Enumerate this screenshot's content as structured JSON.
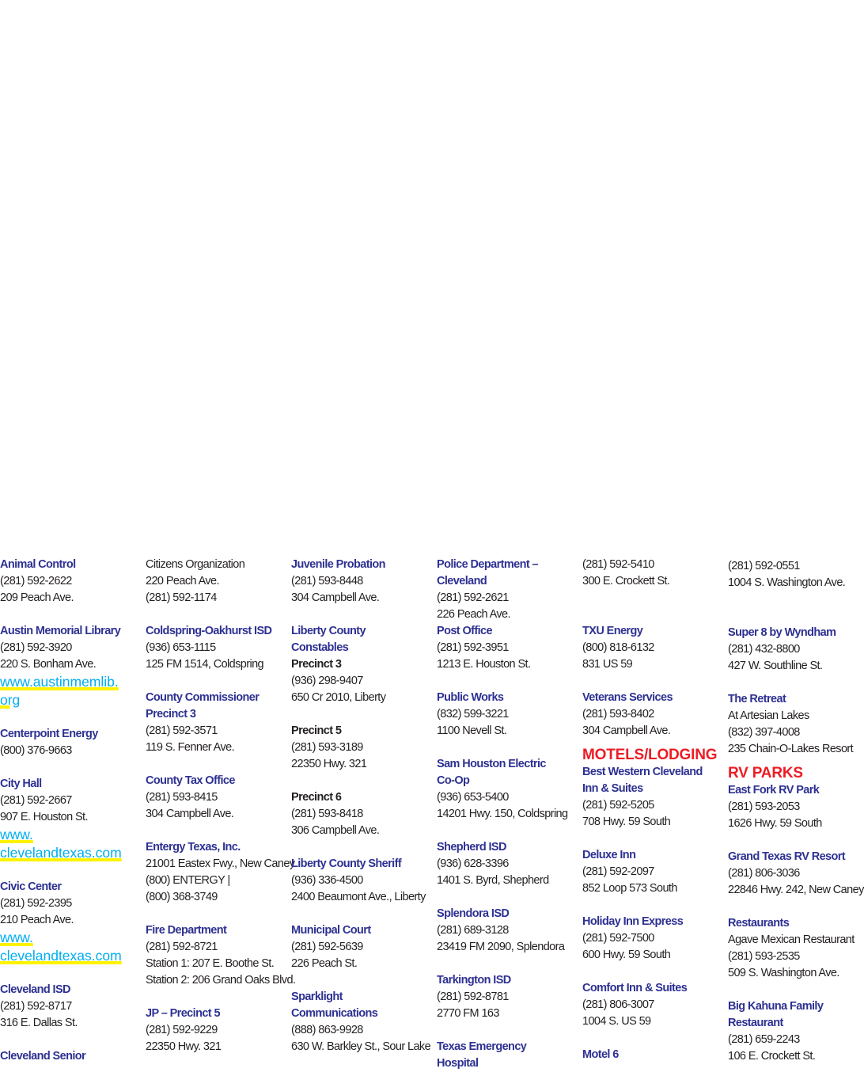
{
  "col1": {
    "animal_control": {
      "name": "Animal Control",
      "phone": "(281) 592-2622",
      "address": "209 Peach Ave."
    },
    "library": {
      "name": "Austin Memorial Library",
      "phone": "(281) 592-3920",
      "address": "220 S. Bonham Ave.",
      "link_a": "www.austinmemlib.",
      "link_b": "org"
    },
    "centerpoint": {
      "name": "Centerpoint Energy",
      "phone": "(800) 376-9663"
    },
    "city_hall": {
      "name": "City Hall",
      "phone": "(281) 592-2667",
      "address": "907 E. Houston St.",
      "link_a": "www.",
      "link_b": "clevelandtexas.com"
    },
    "civic_center": {
      "name": "Civic Center",
      "phone": "(281) 592-2395",
      "address": "210 Peach Ave.",
      "link_a": "www.",
      "link_b": "clevelandtexas.com"
    },
    "cleveland_isd": {
      "name": "Cleveland ISD",
      "phone": "(281) 592-8717",
      "address": "316 E. Dallas St."
    },
    "senior": {
      "name": "Cleveland Senior"
    }
  },
  "col2": {
    "senior_cont": {
      "line1": "Citizens Organization",
      "address": "220 Peach Ave.",
      "phone": "(281) 592-1174"
    },
    "coldspring": {
      "name": "Coldspring-Oakhurst ISD",
      "phone": "(936) 653-1115",
      "address": "125 FM 1514, Coldspring"
    },
    "commissioner": {
      "name": "County Commissioner Precinct 3",
      "phone": "(281) 592-3571",
      "address": "119 S. Fenner Ave."
    },
    "tax_office": {
      "name": "County Tax Office",
      "phone": "(281) 593-8415",
      "address": "304 Campbell Ave."
    },
    "entergy": {
      "name": "Entergy Texas, Inc.",
      "address": "21001 Eastex Fwy., New Caney",
      "phone": "(800) ENTERGY | (800) 368-3749"
    },
    "fire": {
      "name": "Fire Department",
      "phone": "(281) 592-8721",
      "station1": "Station 1: 207 E. Boothe St.",
      "station2": "Station 2: 206 Grand Oaks Blvd."
    },
    "jp5": {
      "name": "JP – Precinct 5",
      "phone": "(281) 592-9229",
      "address": "22350 Hwy. 321"
    }
  },
  "col3": {
    "juvenile": {
      "name": "Juvenile Probation",
      "phone": "(281) 593-8448",
      "address": "304 Campbell Ave."
    },
    "constables": {
      "name": "Liberty County Constables"
    },
    "p3": {
      "name": "Precinct 3",
      "phone": "(936) 298-9407",
      "address": "650 Cr 2010, Liberty"
    },
    "p5": {
      "name": "Precinct 5",
      "phone": "(281) 593-3189",
      "address": "22350 Hwy. 321"
    },
    "p6": {
      "name": "Precinct 6",
      "phone": "(281) 593-8418",
      "address": "306 Campbell Ave."
    },
    "sheriff": {
      "name": "Liberty County Sheriff",
      "phone": "(936) 336-4500",
      "address": "2400 Beaumont Ave., Liberty"
    },
    "court": {
      "name": "Municipal Court",
      "phone": "(281) 592-5639",
      "address": "226 Peach St."
    },
    "sparklight": {
      "name": "Sparklight Communications",
      "phone": "(888) 863-9928",
      "address": "630 W. Barkley St., Sour Lake"
    }
  },
  "col4": {
    "police": {
      "name": "Police Department – Cleveland",
      "phone": "(281) 592-2621",
      "address": "226 Peach Ave."
    },
    "post": {
      "name": "Post Office",
      "phone": "(281) 592-3951",
      "address": "1213 E. Houston St."
    },
    "public_works": {
      "name": "Public Works",
      "phone": "(832) 599-3221",
      "address": "1100 Nevell St."
    },
    "sam_houston": {
      "name": "Sam Houston Electric Co-Op",
      "phone": "(936) 653-5400",
      "address": "14201 Hwy. 150, Coldspring"
    },
    "shepherd": {
      "name": "Shepherd ISD",
      "phone": "(936) 628-3396",
      "address": "1401 S. Byrd, Shepherd"
    },
    "splendora": {
      "name": "Splendora ISD",
      "phone": "(281) 689-3128",
      "address": "23419 FM 2090, Splendora"
    },
    "tarkington": {
      "name": "Tarkington ISD",
      "phone": "(281) 592-8781",
      "address": "2770 FM 163"
    },
    "emergency": {
      "name": "Texas Emergency Hospital"
    }
  },
  "col5": {
    "emergency_cont": {
      "phone": "(281) 592-5410",
      "address": "300 E. Crockett St."
    },
    "txu": {
      "name": "TXU Energy",
      "phone": "(800) 818-6132",
      "address": "831 US 59"
    },
    "veterans": {
      "name": "Veterans Services",
      "phone": "(281) 593-8402",
      "address": "304 Campbell Ave."
    },
    "motels_heading": "MOTELS/LODGING",
    "best_western": {
      "name": "Best Western Cleveland Inn & Suites",
      "phone": "(281) 592-5205",
      "address": "708 Hwy. 59 South"
    },
    "deluxe": {
      "name": "Deluxe Inn",
      "phone": "(281) 592-2097",
      "address": "852 Loop 573 South"
    },
    "holiday": {
      "name": "Holiday Inn Express",
      "phone": "(281) 592-7500",
      "address": "600 Hwy. 59 South"
    },
    "comfort": {
      "name": "Comfort Inn & Suites",
      "phone": "(281) 806-3007",
      "address": "1004 S. US 59"
    },
    "motel6": {
      "name": "Motel 6"
    }
  },
  "col6": {
    "motel6_cont": {
      "phone": "(281) 592-0551",
      "address": "1004 S. Washington Ave."
    },
    "super8": {
      "name": "Super 8 by Wyndham",
      "phone": "(281) 432-8800",
      "address": "427 W. Southline St."
    },
    "retreat": {
      "name": "The Retreat",
      "line1": "At Artesian Lakes",
      "phone": "(832) 397-4008",
      "address": "235 Chain-O-Lakes Resort"
    },
    "rv_heading": "RV PARKS",
    "east_fork": {
      "name": "East Fork RV Park",
      "phone": "(281) 593-2053",
      "address": "1626 Hwy. 59 South"
    },
    "grand_texas": {
      "name": "Grand Texas RV Resort",
      "phone": "(281) 806-3036",
      "address": "22846 Hwy. 242, New Caney"
    },
    "restaurants": {
      "name": "Restaurants",
      "line1": "Agave Mexican Restaurant",
      "phone": "(281) 593-2535",
      "address": "509 S. Washington Ave."
    },
    "big_kahuna": {
      "name": "Big Kahuna Family Restaurant",
      "phone": "(281) 659-2243",
      "address": "106 E. Crockett St."
    }
  },
  "colors": {
    "name": "#2e3192",
    "section": "#ed1c24",
    "link": "#00aeef",
    "link_underline": "#fff200",
    "text": "#231f20"
  }
}
